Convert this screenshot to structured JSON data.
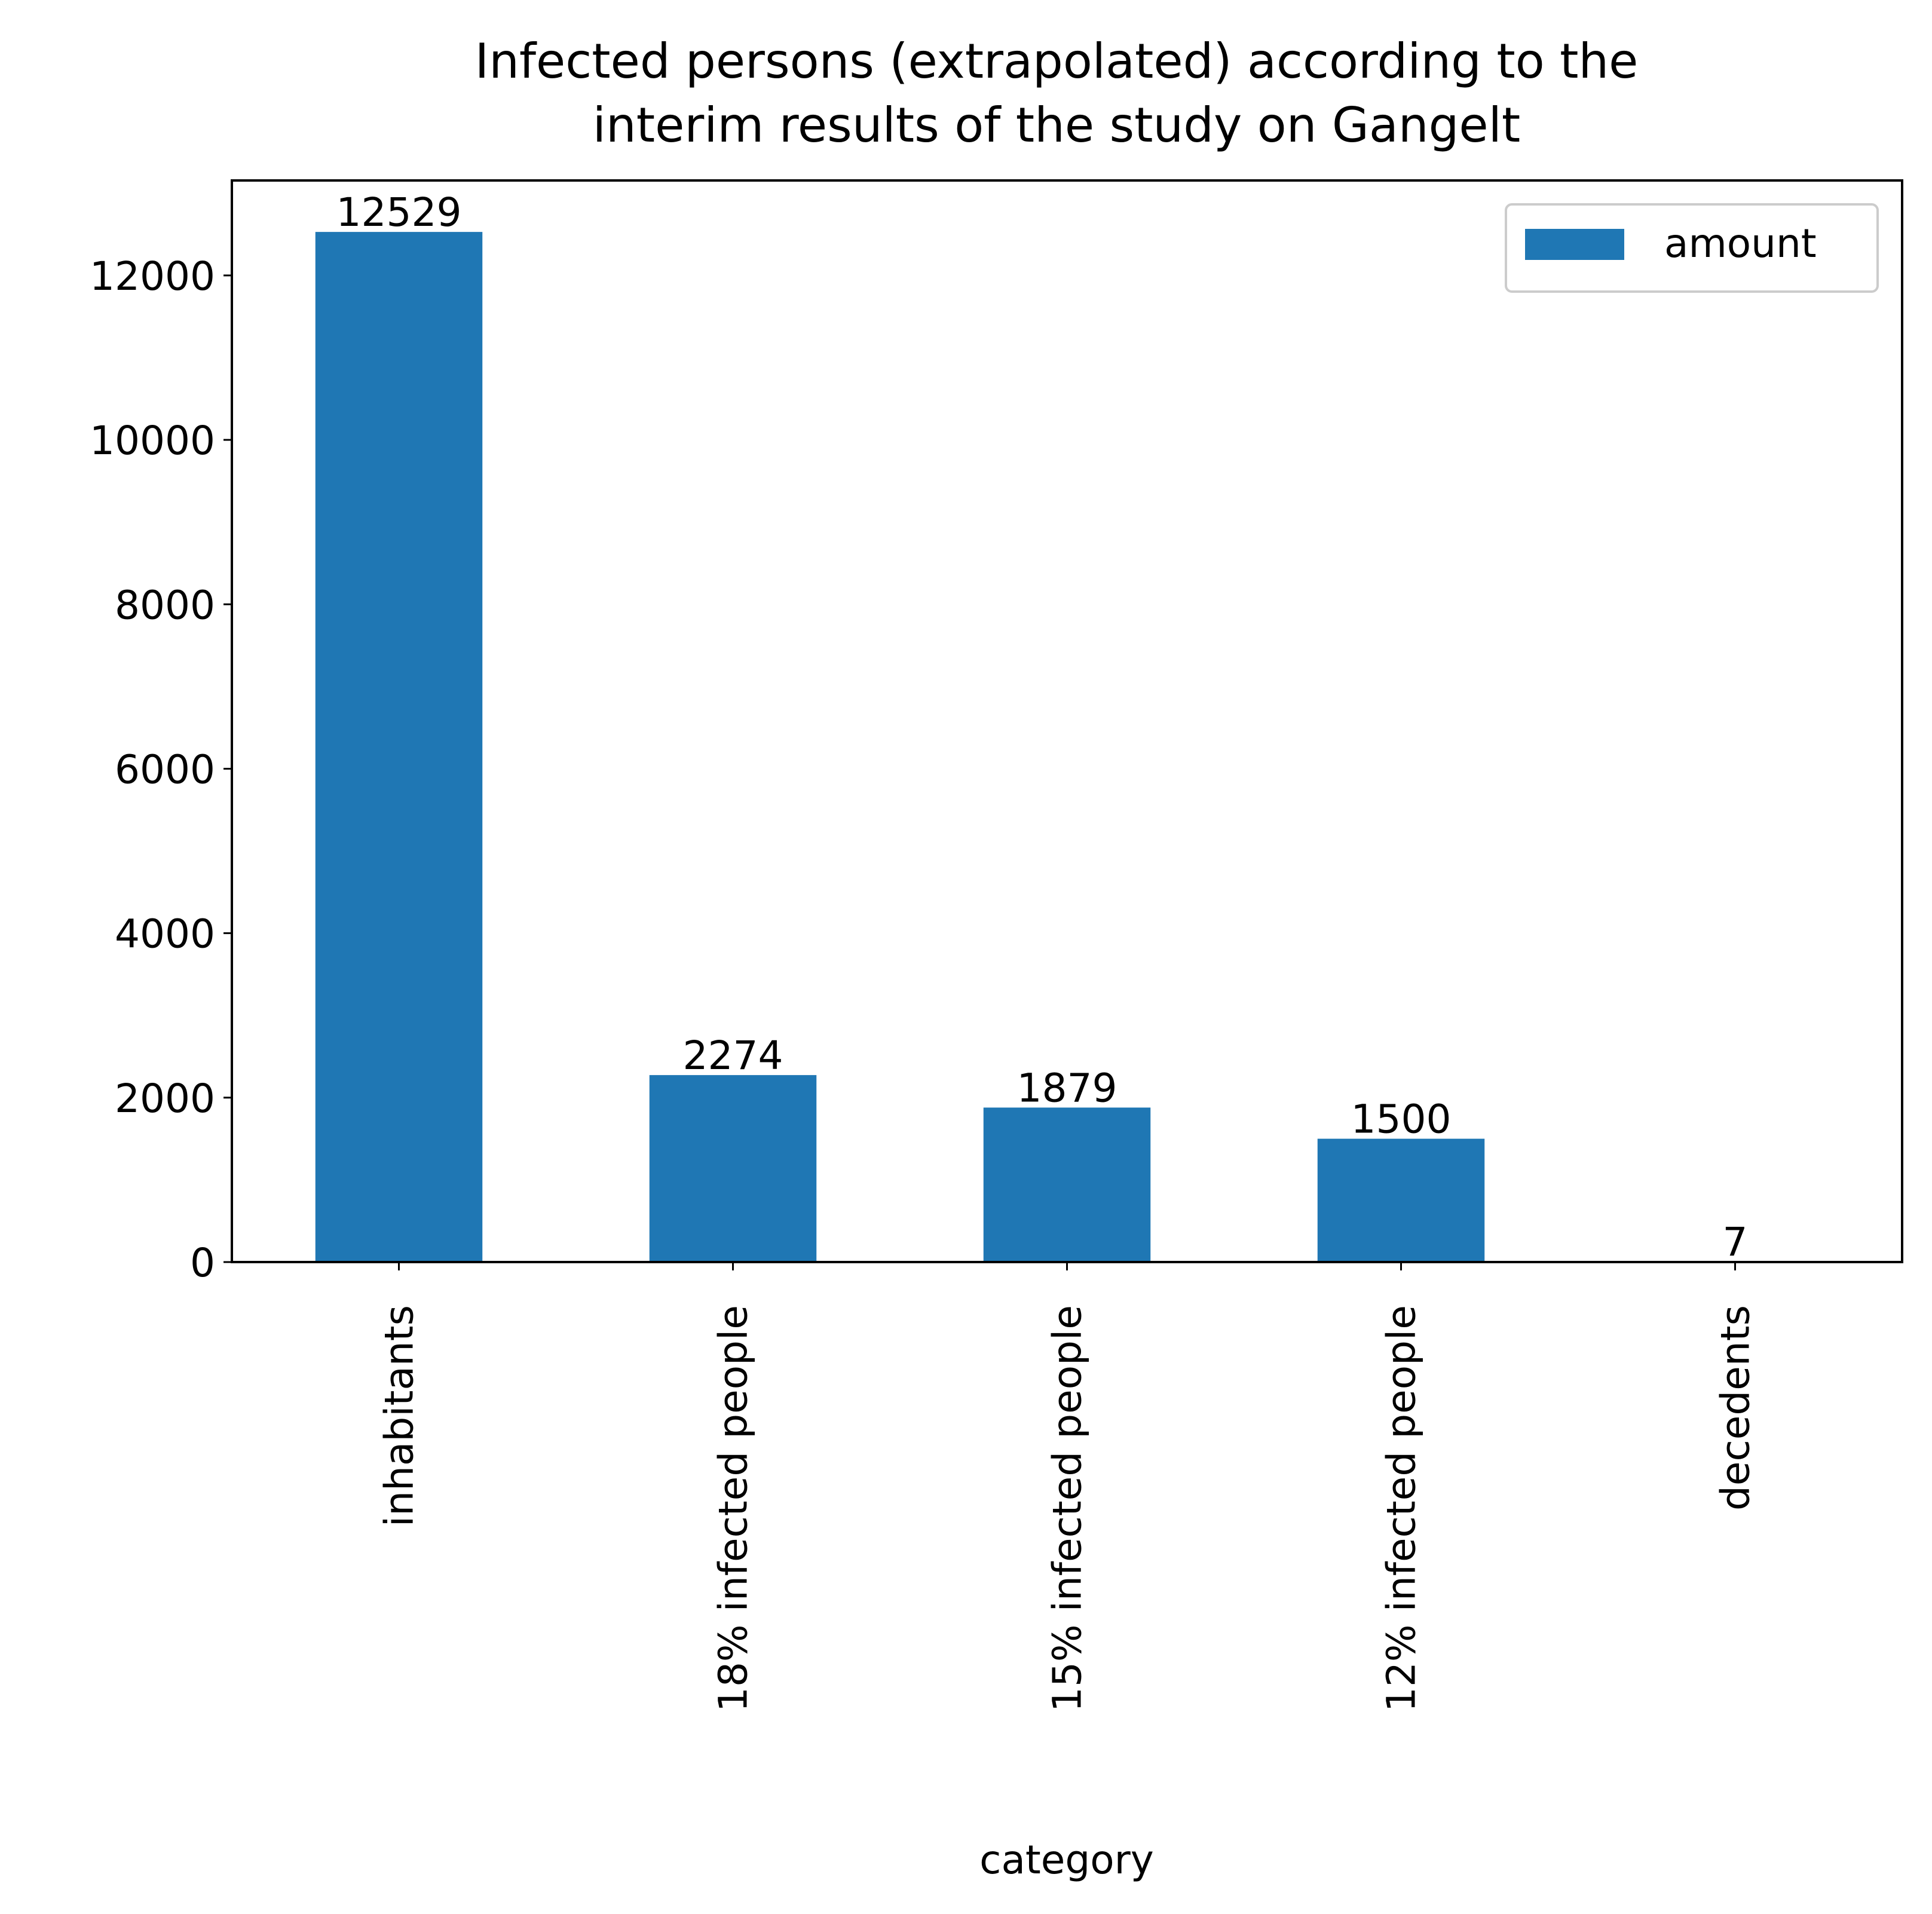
{
  "chart_data": {
    "type": "bar",
    "title_lines": [
      "Infected persons (extrapolated) according to the",
      "interim results of the study on Gangelt"
    ],
    "xlabel": "category",
    "ylabel": "",
    "categories": [
      "inhabitants",
      "18% infected people",
      "15% infected people",
      "12% infected people",
      "decedents"
    ],
    "series": [
      {
        "name": "amount",
        "values": [
          12529,
          2274,
          1879,
          1500,
          7
        ]
      }
    ],
    "bar_labels": [
      "12529",
      "2274",
      "1879",
      "1500",
      "7"
    ],
    "ylim": [
      0,
      13155
    ],
    "yticks": [
      0,
      2000,
      4000,
      6000,
      8000,
      10000,
      12000
    ],
    "ytick_labels": [
      "0",
      "2000",
      "4000",
      "6000",
      "8000",
      "10000",
      "12000"
    ],
    "grid": false,
    "legend_position": "upper right",
    "bar_color": "#1f77b4"
  }
}
